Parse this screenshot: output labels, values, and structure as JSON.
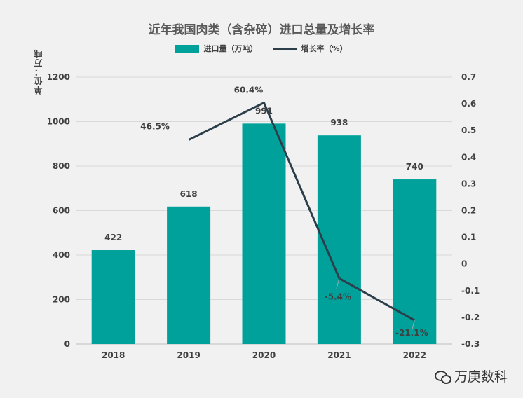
{
  "chart_data": {
    "type": "bar+line",
    "title": "近年我国肉类（含杂碎）进口总量及增长率",
    "unit_label": "单位：万吨",
    "categories": [
      "2018",
      "2019",
      "2020",
      "2021",
      "2022"
    ],
    "bar_series": {
      "name": "进口量（万吨）",
      "values": [
        422,
        618,
        991,
        938,
        740
      ],
      "labels": [
        "422",
        "618",
        "991",
        "938",
        "740"
      ],
      "color": "#00a19a"
    },
    "line_series": {
      "name": "增长率（%）",
      "values": [
        null,
        0.465,
        0.604,
        -0.054,
        -0.211
      ],
      "labels": [
        "",
        "46.5%",
        "60.4%",
        "-5.4%",
        "-21.1%"
      ],
      "color": "#2b3e4a"
    },
    "y_left": {
      "min": 0,
      "max": 1200,
      "ticks": [
        "0",
        "200",
        "400",
        "600",
        "800",
        "1000",
        "1200"
      ]
    },
    "y_right": {
      "min": -0.3,
      "max": 0.7,
      "ticks": [
        "-0.3",
        "-0.2",
        "-0.1",
        "0",
        "0.1",
        "0.2",
        "0.3",
        "0.4",
        "0.5",
        "0.6",
        "0.7"
      ]
    },
    "grid": true
  },
  "watermark": {
    "text": "万庚数科",
    "icon": "wechat-icon"
  }
}
